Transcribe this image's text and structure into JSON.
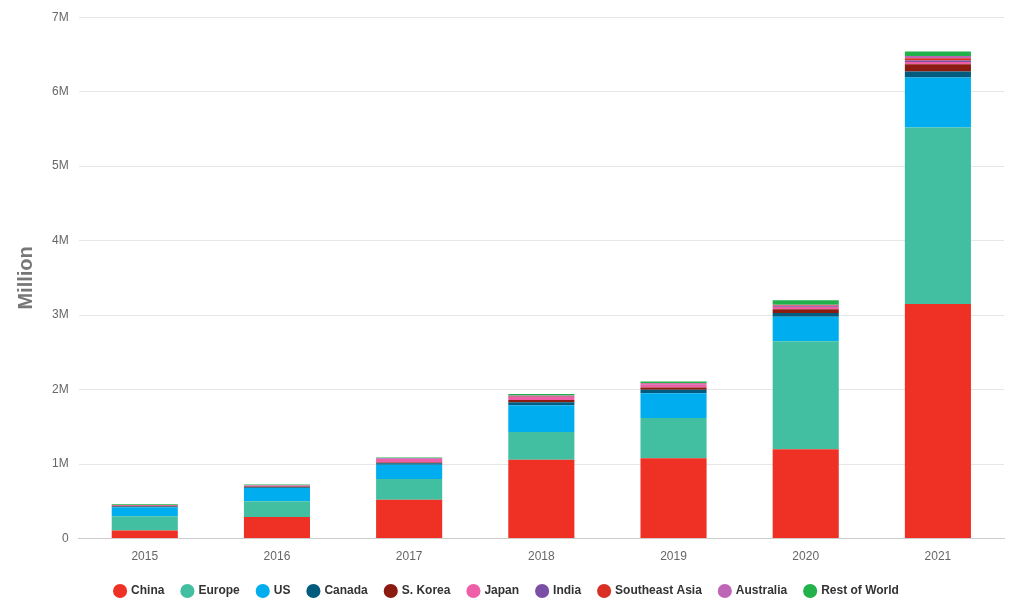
{
  "chart_data": {
    "type": "bar",
    "y_label": "Million",
    "categories": [
      "2015",
      "2016",
      "2017",
      "2018",
      "2019",
      "2020",
      "2021"
    ],
    "ylim": [
      0,
      7
    ],
    "yticks": [
      0,
      {
        "value": 1,
        "label": "1M"
      },
      {
        "value": 2,
        "label": "2M"
      },
      {
        "value": 3,
        "label": "3M"
      },
      {
        "value": 4,
        "label": "4M"
      },
      {
        "value": 5,
        "label": "5M"
      },
      {
        "value": 6,
        "label": "6M"
      },
      {
        "value": 7,
        "label": "7M"
      }
    ],
    "stacked": true,
    "grid": true,
    "legend": "bottom",
    "series": [
      {
        "name": "China",
        "color": "#ee3124",
        "values": [
          0.11,
          0.29,
          0.52,
          1.06,
          1.08,
          1.2,
          3.15
        ]
      },
      {
        "name": "Europe",
        "color": "#42bfa0",
        "values": [
          0.19,
          0.21,
          0.28,
          0.37,
          0.54,
          1.45,
          2.37
        ]
      },
      {
        "name": "US",
        "color": "#00aeef",
        "values": [
          0.12,
          0.18,
          0.19,
          0.36,
          0.33,
          0.33,
          0.67
        ]
      },
      {
        "name": "Canada",
        "color": "#005b7f",
        "values": [
          0.01,
          0.01,
          0.02,
          0.04,
          0.05,
          0.05,
          0.08
        ]
      },
      {
        "name": "S. Korea",
        "color": "#8b1a10",
        "values": [
          0.01,
          0.01,
          0.01,
          0.03,
          0.03,
          0.05,
          0.1
        ]
      },
      {
        "name": "Japan",
        "color": "#ee5fa7",
        "values": [
          0.01,
          0.01,
          0.05,
          0.04,
          0.04,
          0.03,
          0.03
        ]
      },
      {
        "name": "India",
        "color": "#7b4fa6",
        "values": [
          0.0,
          0.0,
          0.0,
          0.005,
          0.005,
          0.01,
          0.02
        ]
      },
      {
        "name": "Southeast Asia",
        "color": "#d93025",
        "values": [
          0.0,
          0.0,
          0.0,
          0.005,
          0.005,
          0.01,
          0.03
        ]
      },
      {
        "name": "Australia",
        "color": "#c066b7",
        "values": [
          0.0,
          0.005,
          0.01,
          0.01,
          0.01,
          0.01,
          0.03
        ]
      },
      {
        "name": "Rest of World",
        "color": "#21b24b",
        "values": [
          0.01,
          0.01,
          0.01,
          0.02,
          0.02,
          0.06,
          0.06
        ]
      }
    ]
  }
}
